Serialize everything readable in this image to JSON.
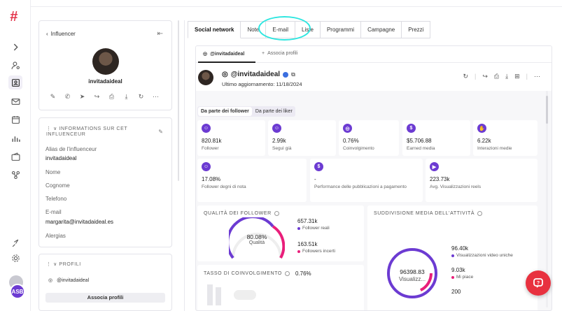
{
  "rail": {
    "avatar_initials": "ASB"
  },
  "left_panel": {
    "back_label": "Influencer",
    "username": "invitadaideal",
    "info_section_title": "INFORMATIONS SUR CET INFLUENCEUR",
    "fields": [
      {
        "label": "Alias de l'influenceur",
        "value": "invitadaideal"
      },
      {
        "label": "Nome",
        "value": ""
      },
      {
        "label": "Cognome",
        "value": ""
      },
      {
        "label": "Telefono",
        "value": ""
      },
      {
        "label": "E-mail",
        "value": "margarita@invitadaideal.es"
      },
      {
        "label": "Alergias",
        "value": ""
      }
    ],
    "profiles_title": "PROFILI",
    "profile_handle": "@invitadaideal",
    "associate_button": "Associa profili"
  },
  "main": {
    "tabs": [
      "Social network",
      "Note",
      "E-mail",
      "Liste",
      "Programmi",
      "Campagne",
      "Prezzi"
    ],
    "subtabs": {
      "active": "@invitadaideal",
      "add": "Associa profili"
    },
    "profile": {
      "name": "@invitadaideal",
      "updated": "Ultimo aggiornamento: 11/18/2024"
    },
    "toggle": [
      "Da parte dei follower",
      "Da parte dei liker"
    ],
    "stats_row1": [
      {
        "value": "820.81k",
        "label": "Follower",
        "icon": "users-icon"
      },
      {
        "value": "2.99k",
        "label": "Seguì già",
        "icon": "user-icon"
      },
      {
        "value": "0.76%",
        "label": "Coinvolgimento",
        "icon": "target-icon"
      },
      {
        "value": "$5.706.88",
        "label": "Earned media",
        "icon": "dollar-icon"
      },
      {
        "value": "6.22k",
        "label": "Interazioni medie",
        "icon": "hand-icon"
      }
    ],
    "stats_row2": [
      {
        "value": "17.08%",
        "label": "Follower degni di nota",
        "icon": "users-icon"
      },
      {
        "value": "-",
        "label": "Performance delle pubblicazioni a pagamento",
        "icon": "dollar-icon"
      },
      {
        "value": "223.73k",
        "label": "Avg. Visualizzazioni reels",
        "icon": "play-icon"
      }
    ],
    "quality": {
      "title": "QUALITÀ DEI FOLLOWER",
      "center_value": "80.08%",
      "center_label": "Qualità",
      "legend": [
        {
          "value": "657.31k",
          "label": "Follower reali",
          "color": "#6c3bd2"
        },
        {
          "value": "163.51k",
          "label": "Followers incerti",
          "color": "#e91e7a"
        }
      ]
    },
    "engagement": {
      "title": "TASSO DI COINVOLGIMENTO",
      "value": "0.76%"
    },
    "activity": {
      "title": "SUDDIVISIONE MEDIA DELL'ATTIVITÀ",
      "center_value": "96398.83",
      "center_label": "Visualizz...",
      "legend": [
        {
          "value": "96.40k",
          "label": "Visualizzazioni video uniche",
          "color": "#6c3bd2"
        },
        {
          "value": "9.03k",
          "label": "Mi piace",
          "color": "#e91e7a"
        },
        {
          "value": "200",
          "label": "",
          "color": ""
        }
      ]
    }
  },
  "colors": {
    "accent": "#6c3bd2",
    "pink": "#e91e7a",
    "help": "#e8313f",
    "highlight": "#2ee6e0"
  }
}
